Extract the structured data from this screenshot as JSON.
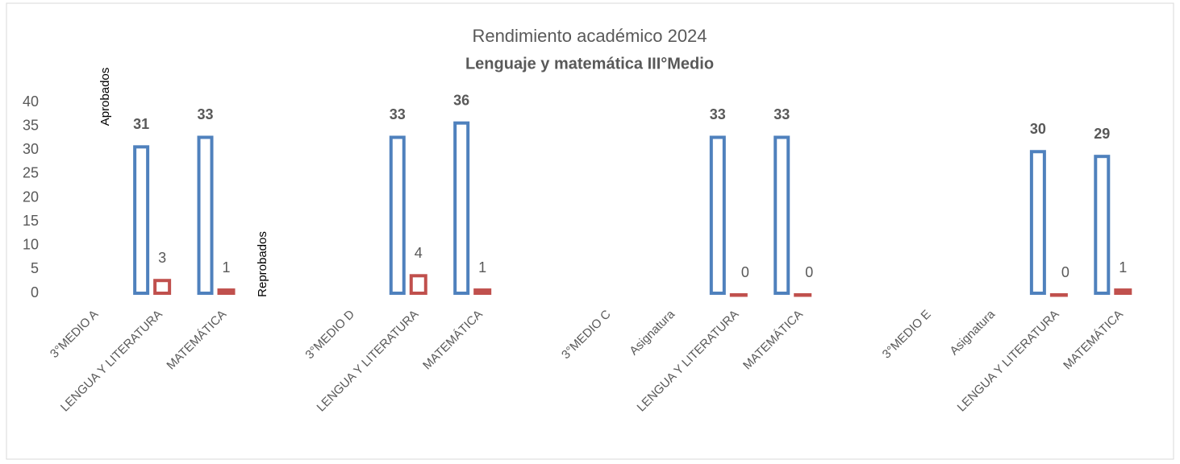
{
  "chart_data": {
    "type": "bar",
    "title": "Rendimiento académico 2024",
    "subtitle": "Lenguaje y matemática  III°Medio",
    "annotations": [
      "Aprobados",
      "Reprobados"
    ],
    "categories": [
      "3°MEDIO A",
      "LENGUA Y LITERATURA",
      "MATEMÁTICA",
      null,
      "3°MEDIO D",
      "LENGUA Y LITERATURA",
      "MATEMÁTICA",
      null,
      "3°MEDIO C",
      "Asignatura",
      "LENGUA Y LITERATURA",
      "MATEMÁTICA",
      null,
      "3°MEDIO E",
      "Asignatura",
      "LENGUA Y LITERATURA",
      "MATEMÁTICA"
    ],
    "series": [
      {
        "name": "Aprobados",
        "color": "#4f81bd",
        "values": [
          null,
          31,
          33,
          null,
          null,
          33,
          36,
          null,
          null,
          null,
          33,
          33,
          null,
          null,
          null,
          30,
          29
        ]
      },
      {
        "name": "Reprobados",
        "color": "#c0504d",
        "values": [
          null,
          3,
          1,
          null,
          null,
          4,
          1,
          null,
          null,
          null,
          0,
          0,
          null,
          null,
          null,
          0,
          1
        ]
      }
    ],
    "ylim": [
      0,
      40
    ],
    "yticks": [
      0,
      5,
      10,
      15,
      20,
      25,
      30,
      35,
      40
    ],
    "grid": false
  }
}
